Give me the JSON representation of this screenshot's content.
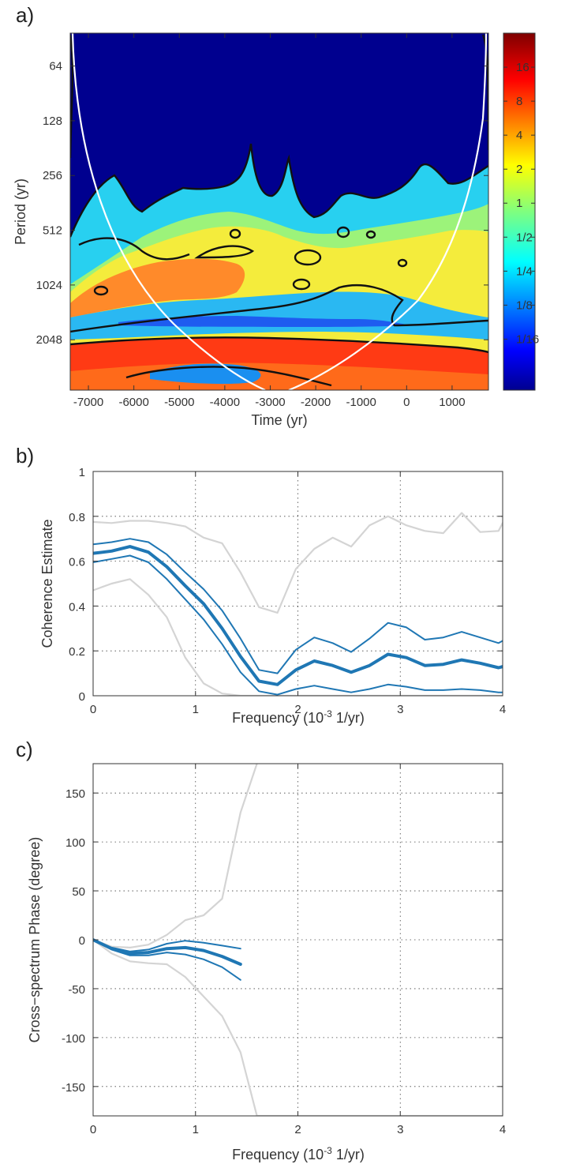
{
  "colors": {
    "band_main": "#1f77b4",
    "band_outer": "#d4d4d4",
    "contour": "#111111",
    "coi": "#ffffff"
  },
  "chart_data": [
    {
      "id": "a",
      "panel_label": "a)",
      "type": "heatmap",
      "title": "",
      "xlabel": "Time (yr)",
      "ylabel": "Period (yr)",
      "xlim": [
        -7400,
        1800
      ],
      "ylim_log2": [
        5.4,
        11.92
      ],
      "y_scale": "log2",
      "x_ticks": [
        -7000,
        -6000,
        -5000,
        -4000,
        -3000,
        -2000,
        -1000,
        0,
        1000
      ],
      "x_tick_labels": [
        "-7000",
        "-6000",
        "-5000",
        "-4000",
        "-3000",
        "-2000",
        "-1000",
        "0",
        "1000"
      ],
      "y_ticks": [
        64,
        128,
        256,
        512,
        1024,
        2048
      ],
      "y_tick_labels": [
        "64",
        "128",
        "256",
        "512",
        "1024",
        "2048"
      ],
      "colorbar": {
        "scale": "log2",
        "range_log2": [
          -5.5,
          5
        ],
        "colormap": "jet",
        "ticks_log2": [
          4,
          3,
          2,
          1,
          0,
          -1,
          -2,
          -3,
          -4
        ],
        "tick_labels": [
          "16",
          "8",
          "4",
          "2",
          "1",
          "1/2",
          "1/4",
          "1/8",
          "1/16"
        ]
      },
      "description_bands": [
        {
          "period_range": [
            40,
            200
          ],
          "power": "< 1/16"
        },
        {
          "period_range": [
            200,
            700
          ],
          "power": "1/4 - 2"
        },
        {
          "period_range": [
            700,
            1300
          ],
          "power": "1/2 - 8"
        },
        {
          "period_range": [
            1300,
            1600
          ],
          "power": "1/8 - 1"
        },
        {
          "period_range": [
            1700,
            3800
          ],
          "power": "4 - 16"
        }
      ],
      "cone_of_influence": {
        "left_edge_x": -7400,
        "right_edge_x": 1800,
        "apex_x": -2800
      }
    },
    {
      "id": "b",
      "panel_label": "b)",
      "type": "line",
      "title": "",
      "xlabel_main": "Frequency (10",
      "xlabel_sup": "-3",
      "xlabel_rest": " 1/yr)",
      "ylabel": "Coherence Estimate",
      "xlim": [
        0,
        4
      ],
      "ylim": [
        0,
        1
      ],
      "grid": true,
      "x_ticks": [
        0,
        1,
        2,
        3,
        4
      ],
      "x_tick_labels": [
        "0",
        "1",
        "2",
        "3",
        "4"
      ],
      "y_ticks": [
        0,
        0.2,
        0.4,
        0.6,
        0.8,
        1
      ],
      "y_tick_labels": [
        "0",
        "0.2",
        "0.4",
        "0.6",
        "0.8",
        "1"
      ],
      "x": [
        0,
        0.18,
        0.36,
        0.54,
        0.72,
        0.9,
        1.08,
        1.26,
        1.44,
        1.62,
        1.8,
        1.98,
        2.16,
        2.34,
        2.52,
        2.7,
        2.88,
        3.06,
        3.24,
        3.42,
        3.6,
        3.78,
        3.96,
        4.0
      ],
      "series": [
        {
          "role": "outer-upper",
          "values": [
            0.775,
            0.77,
            0.78,
            0.78,
            0.77,
            0.755,
            0.705,
            0.68,
            0.55,
            0.395,
            0.37,
            0.565,
            0.655,
            0.705,
            0.665,
            0.76,
            0.8,
            0.76,
            0.735,
            0.725,
            0.815,
            0.73,
            0.735,
            0.77
          ]
        },
        {
          "role": "inner-upper",
          "values": [
            0.675,
            0.685,
            0.7,
            0.685,
            0.63,
            0.55,
            0.475,
            0.38,
            0.255,
            0.115,
            0.1,
            0.205,
            0.26,
            0.235,
            0.195,
            0.255,
            0.325,
            0.305,
            0.25,
            0.26,
            0.285,
            0.26,
            0.235,
            0.245
          ]
        },
        {
          "role": "median",
          "values": [
            0.635,
            0.645,
            0.665,
            0.64,
            0.575,
            0.49,
            0.41,
            0.3,
            0.175,
            0.065,
            0.05,
            0.115,
            0.155,
            0.135,
            0.105,
            0.135,
            0.185,
            0.17,
            0.135,
            0.14,
            0.16,
            0.145,
            0.125,
            0.13
          ]
        },
        {
          "role": "inner-lower",
          "values": [
            0.595,
            0.61,
            0.625,
            0.595,
            0.52,
            0.43,
            0.34,
            0.23,
            0.105,
            0.02,
            0.005,
            0.03,
            0.045,
            0.03,
            0.015,
            0.03,
            0.05,
            0.04,
            0.025,
            0.025,
            0.03,
            0.025,
            0.015,
            0.015
          ]
        },
        {
          "role": "outer-lower",
          "values": [
            0.47,
            0.5,
            0.52,
            0.45,
            0.35,
            0.17,
            0.055,
            0.01,
            0.0,
            0.0,
            0.0,
            0.0,
            0.0,
            0.0,
            0.0,
            0.0,
            0.0,
            0.0,
            0.0,
            0.0,
            0.0,
            0.0,
            0.0,
            0.0
          ]
        }
      ]
    },
    {
      "id": "c",
      "panel_label": "c)",
      "type": "line",
      "title": "",
      "xlabel_main": "Frequency (10",
      "xlabel_sup": "-3",
      "xlabel_rest": " 1/yr)",
      "ylabel": "Cross−spectrum Phase (degree)",
      "xlim": [
        0,
        4
      ],
      "ylim": [
        -180,
        180
      ],
      "grid": true,
      "x_ticks": [
        0,
        1,
        2,
        3,
        4
      ],
      "x_tick_labels": [
        "0",
        "1",
        "2",
        "3",
        "4"
      ],
      "y_ticks": [
        -150,
        -100,
        -50,
        0,
        50,
        100,
        150
      ],
      "y_tick_labels": [
        "-150",
        "-100",
        "-50",
        "0",
        "50",
        "100",
        "150"
      ],
      "series": [
        {
          "role": "outer-upper",
          "x": [
            0,
            0.18,
            0.36,
            0.54,
            0.72,
            0.9,
            1.08,
            1.26,
            1.44,
            1.6
          ],
          "values": [
            0,
            -7,
            -8,
            -5,
            5,
            20,
            25,
            42,
            130,
            180
          ]
        },
        {
          "role": "outer-lower",
          "x": [
            0,
            0.18,
            0.36,
            0.54,
            0.72,
            0.9,
            1.08,
            1.26,
            1.44,
            1.6,
            4.0
          ],
          "values": [
            0,
            -14,
            -22,
            -24,
            -25,
            -38,
            -58,
            -78,
            -115,
            -180,
            -180
          ]
        },
        {
          "role": "inner-upper",
          "x": [
            0,
            0.18,
            0.36,
            0.54,
            0.72,
            0.9,
            1.08,
            1.26,
            1.44
          ],
          "values": [
            0,
            -8,
            -12,
            -10,
            -4,
            -1,
            -3,
            -6,
            -9
          ]
        },
        {
          "role": "median",
          "x": [
            0,
            0.18,
            0.36,
            0.54,
            0.72,
            0.9,
            1.08,
            1.26,
            1.44
          ],
          "values": [
            0,
            -9,
            -14,
            -13,
            -9,
            -8,
            -11,
            -17,
            -25
          ]
        },
        {
          "role": "inner-lower",
          "x": [
            0,
            0.18,
            0.36,
            0.54,
            0.72,
            0.9,
            1.08,
            1.26,
            1.44
          ],
          "values": [
            0,
            -10,
            -16,
            -16,
            -13,
            -15,
            -20,
            -28,
            -41
          ]
        }
      ]
    }
  ]
}
